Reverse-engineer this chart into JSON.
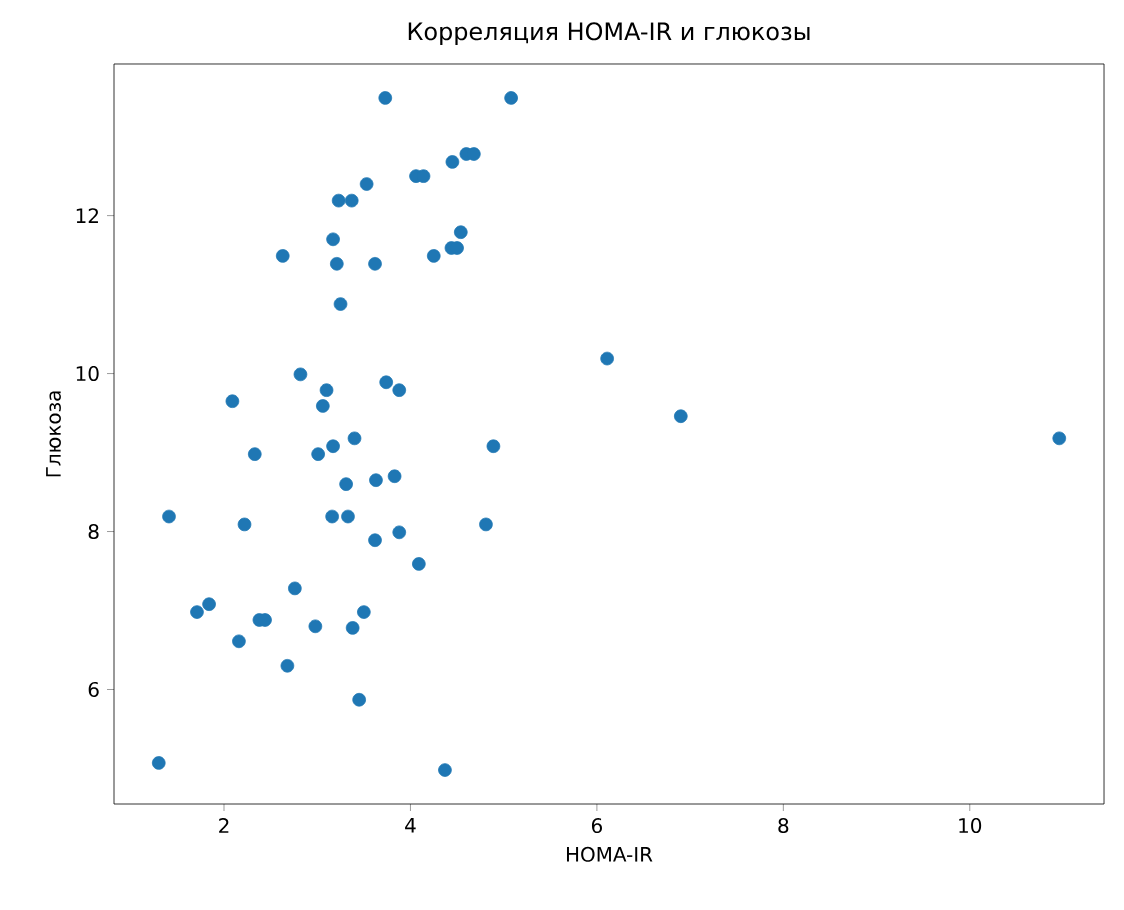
{
  "chart_data": {
    "type": "scatter",
    "title": "Корреляция HOMA-IR и глюкозы",
    "xlabel": "HOMA-IR",
    "ylabel": "Глюкоза",
    "x": [
      2.09,
      3.06,
      2.33,
      3.01,
      3.17,
      3.4,
      4.89,
      3.31,
      3.63,
      3.83,
      1.41,
      2.22,
      3.16,
      3.33,
      3.62,
      3.88,
      4.81,
      4.09,
      2.76,
      1.71,
      1.84,
      2.38,
      2.44,
      3.5,
      2.98,
      3.38,
      2.16,
      2.68,
      3.45,
      1.3,
      4.37,
      3.73,
      5.08,
      4.45,
      4.6,
      4.68,
      4.06,
      4.14,
      3.53,
      3.23,
      3.37,
      3.17,
      4.54,
      2.63,
      3.21,
      3.62,
      4.25,
      4.44,
      4.5,
      3.25,
      2.82,
      3.1,
      3.74,
      3.88,
      6.11,
      6.9,
      10.96
    ],
    "values": [
      9.65,
      9.59,
      8.98,
      8.98,
      9.08,
      9.18,
      9.08,
      8.6,
      8.65,
      8.7,
      8.19,
      8.09,
      8.19,
      8.19,
      7.89,
      7.99,
      8.09,
      7.59,
      7.28,
      6.98,
      7.08,
      6.88,
      6.88,
      6.98,
      6.8,
      6.78,
      6.61,
      6.3,
      5.87,
      5.07,
      4.98,
      13.49,
      13.49,
      12.68,
      12.78,
      12.78,
      12.5,
      12.5,
      12.4,
      12.19,
      12.19,
      11.7,
      11.79,
      11.49,
      11.39,
      11.39,
      11.49,
      11.59,
      11.59,
      10.88,
      9.99,
      9.79,
      9.89,
      9.79,
      10.19,
      9.46,
      9.18
    ],
    "color": "#1f77b4",
    "marker": "circle",
    "xlim": [
      0.82,
      11.44
    ],
    "ylim": [
      4.55,
      13.92
    ],
    "xticks": [
      2,
      4,
      6,
      8,
      10
    ],
    "yticks": [
      6,
      8,
      10,
      12
    ]
  }
}
